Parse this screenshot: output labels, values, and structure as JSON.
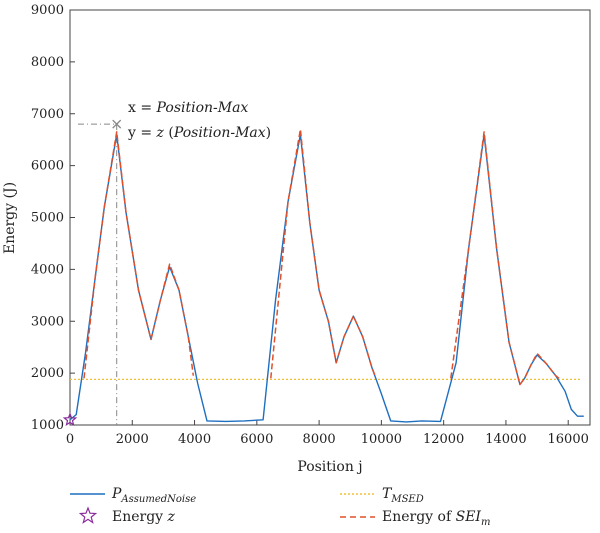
{
  "chart_data": {
    "type": "line",
    "xlabel": "Position j",
    "ylabel": "Energy (J)",
    "xlim": [
      0,
      16700
    ],
    "ylim": [
      1000,
      9000
    ],
    "xticks": [
      0,
      2000,
      4000,
      6000,
      8000,
      10000,
      12000,
      14000,
      16000
    ],
    "yticks": [
      1000,
      2000,
      3000,
      4000,
      5000,
      6000,
      7000,
      8000,
      9000
    ],
    "grid": false,
    "legend_position": "bottom",
    "threshold": 1880,
    "marker_point": {
      "x": 1500,
      "y": 6800
    },
    "star_point": {
      "x": 0,
      "y": 1100
    },
    "annotation": {
      "line1_prefix": "x = ",
      "line1_italic": "Position-Max",
      "line2_prefix": "y = ",
      "line2_italic": "z",
      "line2_paren": " (",
      "line2_italic2": "Position-Max",
      "line2_close": ")"
    },
    "colors": {
      "noise": "#1f6fc0",
      "threshold": "#f2c037",
      "energy": "#e0502a",
      "star": "#8b2c9e",
      "guide": "#888888"
    },
    "series": [
      {
        "id": "assumed_noise",
        "x": [
          0,
          200,
          500,
          800,
          1100,
          1500,
          1800,
          2200,
          2600,
          2900,
          3200,
          3500,
          3800,
          4100,
          4400,
          5000,
          5600,
          6200,
          6600,
          7000,
          7400,
          7700,
          8000,
          8300,
          8550,
          8800,
          9100,
          9400,
          9700,
          10000,
          10300,
          10800,
          11300,
          11900,
          12400,
          12800,
          13300,
          13700,
          14100,
          14450,
          14600,
          14800,
          15000,
          15300,
          15600,
          15900,
          16100,
          16300,
          16500
        ],
        "y": [
          1100,
          1200,
          2400,
          3800,
          5200,
          6600,
          5100,
          3600,
          2650,
          3400,
          4050,
          3600,
          2700,
          1800,
          1080,
          1070,
          1080,
          1100,
          3400,
          5300,
          6600,
          4900,
          3600,
          3000,
          2200,
          2700,
          3100,
          2700,
          2100,
          1600,
          1080,
          1060,
          1080,
          1070,
          2200,
          4400,
          6600,
          4400,
          2600,
          1780,
          1900,
          2150,
          2350,
          2180,
          1950,
          1650,
          1300,
          1170,
          1170
        ]
      },
      {
        "id": "energy_sei",
        "segments": [
          {
            "x": [
              450,
              800,
              1100,
              1500,
              1800,
              2200,
              2600,
              2900,
              3200,
              3500,
              3800,
              3960
            ],
            "y": [
              1900,
              3800,
              5200,
              6650,
              5100,
              3600,
              2650,
              3400,
              4100,
              3600,
              2700,
              1950
            ]
          },
          {
            "x": [
              6450,
              7000,
              7400,
              7700,
              8000,
              8300,
              8550,
              8800,
              9100,
              9400,
              9700,
              9800
            ],
            "y": [
              1900,
              5300,
              6700,
              4900,
              3600,
              3000,
              2200,
              2700,
              3100,
              2700,
              2100,
              1950
            ]
          },
          {
            "x": [
              12230,
              12800,
              13300,
              13700,
              14100,
              14450,
              14600,
              14800,
              15000,
              15300,
              15600,
              15750
            ],
            "y": [
              1900,
              4400,
              6650,
              4400,
              2600,
              1780,
              1900,
              2150,
              2380,
              2180,
              1950,
              1880
            ]
          }
        ]
      }
    ],
    "legend": {
      "noise_label": "P",
      "noise_sub": "AssumedNoise",
      "star_label_prefix": "Energy ",
      "star_label_italic": "z",
      "threshold_label": "T",
      "threshold_sub": "MSED",
      "energy_label_prefix": "Energy of ",
      "energy_label_italic": "SEI",
      "energy_label_sub": "m"
    }
  }
}
